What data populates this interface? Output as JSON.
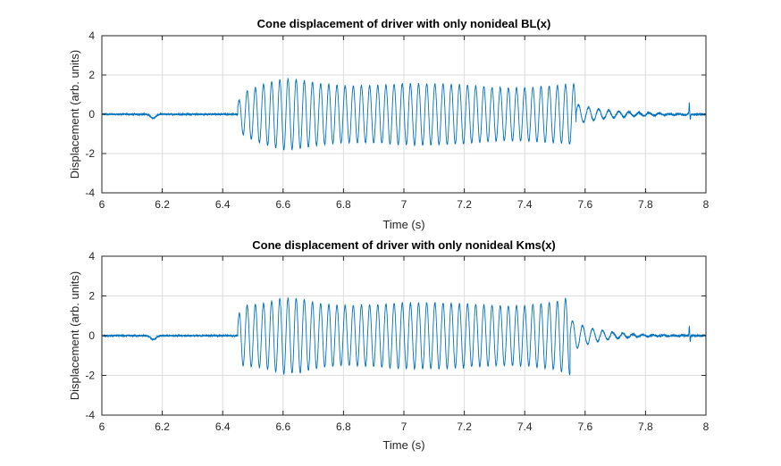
{
  "colors": {
    "line": "#0072BD",
    "grid": "#dcdcdc",
    "axis": "#262626",
    "background": "#ffffff"
  },
  "chart_data": [
    {
      "type": "line",
      "title": "Cone displacement of driver with only nonideal BL(x)",
      "xlabel": "Time (s)",
      "ylabel": "Displacement (arb. units)",
      "xlim": [
        6,
        8
      ],
      "ylim": [
        -4,
        4
      ],
      "xticks": [
        6,
        6.2,
        6.4,
        6.6,
        6.8,
        7,
        7.2,
        7.4,
        7.6,
        7.8,
        8
      ],
      "xtick_labels": [
        "6",
        "6.2",
        "6.4",
        "6.6",
        "6.8",
        "7",
        "7.2",
        "7.4",
        "7.6",
        "7.8",
        "8"
      ],
      "yticks": [
        4,
        2,
        0,
        -2,
        -4
      ],
      "ytick_labels": [
        "4",
        "2",
        "0",
        "-2",
        "-4"
      ],
      "grid": true,
      "signal": {
        "onset_time": 6.45,
        "offset_time": 7.57,
        "tone_frequency_hz": 37,
        "envelope": [
          {
            "x": 6.45,
            "y": 0.6
          },
          {
            "x": 6.47,
            "y": 1.1
          },
          {
            "x": 6.53,
            "y": 1.5
          },
          {
            "x": 6.6,
            "y": 1.8
          },
          {
            "x": 6.66,
            "y": 1.75
          },
          {
            "x": 6.72,
            "y": 1.55
          },
          {
            "x": 6.8,
            "y": 1.45
          },
          {
            "x": 6.9,
            "y": 1.45
          },
          {
            "x": 7.0,
            "y": 1.55
          },
          {
            "x": 7.1,
            "y": 1.55
          },
          {
            "x": 7.2,
            "y": 1.5
          },
          {
            "x": 7.3,
            "y": 1.35
          },
          {
            "x": 7.4,
            "y": 1.35
          },
          {
            "x": 7.5,
            "y": 1.45
          },
          {
            "x": 7.57,
            "y": 1.55
          }
        ],
        "ringdown_peak": 0.5,
        "ringdown_frequency_hz": 30,
        "ringdown_decay_s": 0.12,
        "dip_time": 6.17,
        "dip_value": -0.2,
        "spikes": [
          {
            "x": 7.945,
            "y": 0.55
          },
          {
            "x": 7.948,
            "y": -0.3
          }
        ]
      }
    },
    {
      "type": "line",
      "title": "Cone displacement of driver with only nonideal Kms(x)",
      "xlabel": "Time (s)",
      "ylabel": "Displacement (arb. units)",
      "xlim": [
        6,
        8
      ],
      "ylim": [
        -4,
        4
      ],
      "xticks": [
        6,
        6.2,
        6.4,
        6.6,
        6.8,
        7,
        7.2,
        7.4,
        7.6,
        7.8,
        8
      ],
      "xtick_labels": [
        "6",
        "6.2",
        "6.4",
        "6.6",
        "6.8",
        "7",
        "7.2",
        "7.4",
        "7.6",
        "7.8",
        "8"
      ],
      "yticks": [
        4,
        2,
        0,
        -2,
        -4
      ],
      "ytick_labels": [
        "4",
        "2",
        "0",
        "-2",
        "-4"
      ],
      "grid": true,
      "signal": {
        "onset_time": 6.45,
        "offset_time": 7.55,
        "tone_frequency_hz": 37,
        "envelope": [
          {
            "x": 6.45,
            "y": 0.8
          },
          {
            "x": 6.46,
            "y": 1.5
          },
          {
            "x": 6.53,
            "y": 1.6
          },
          {
            "x": 6.6,
            "y": 1.9
          },
          {
            "x": 6.66,
            "y": 1.85
          },
          {
            "x": 6.72,
            "y": 1.6
          },
          {
            "x": 6.8,
            "y": 1.5
          },
          {
            "x": 6.9,
            "y": 1.55
          },
          {
            "x": 7.0,
            "y": 1.65
          },
          {
            "x": 7.1,
            "y": 1.65
          },
          {
            "x": 7.2,
            "y": 1.6
          },
          {
            "x": 7.3,
            "y": 1.5
          },
          {
            "x": 7.4,
            "y": 1.5
          },
          {
            "x": 7.5,
            "y": 1.7
          },
          {
            "x": 7.55,
            "y": 1.95
          }
        ],
        "ringdown_peak": 0.8,
        "ringdown_frequency_hz": 30,
        "ringdown_decay_s": 0.09,
        "dip_time": 6.17,
        "dip_value": -0.2,
        "spikes": [
          {
            "x": 7.945,
            "y": 0.5
          },
          {
            "x": 7.948,
            "y": -0.3
          }
        ]
      }
    }
  ]
}
